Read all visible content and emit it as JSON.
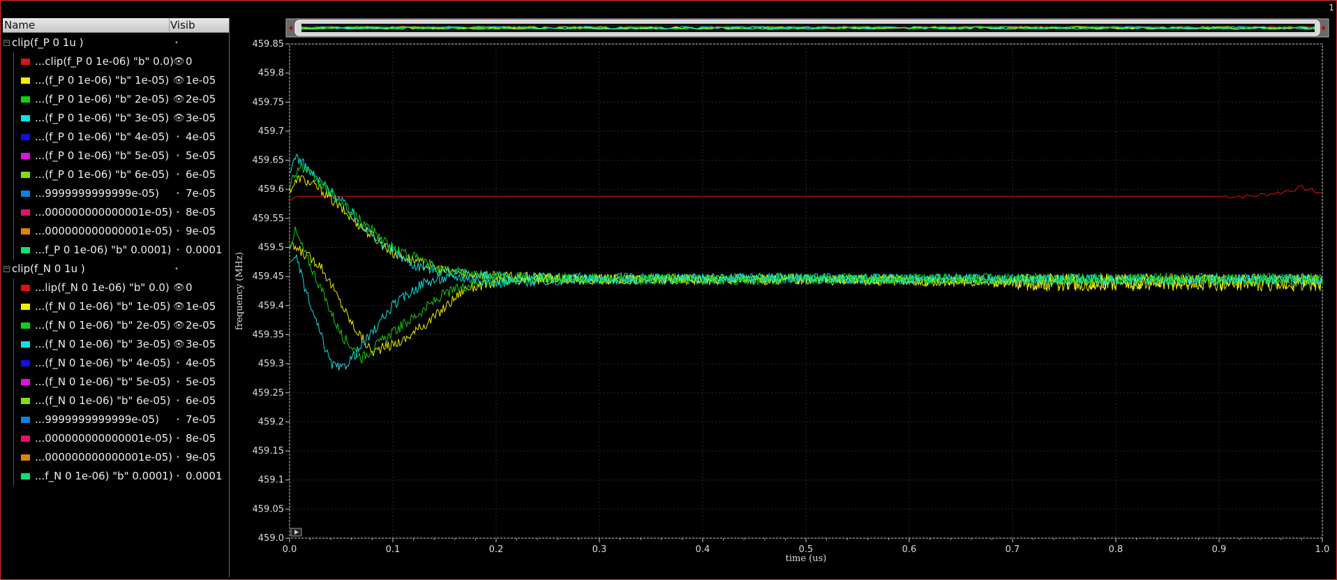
{
  "window": {
    "corner_number": "1",
    "frame_color": "#e03030"
  },
  "tree": {
    "header": {
      "name": "Name",
      "visible": "Visib"
    },
    "groups": [
      {
        "label": "clip(f_P 0 1u )",
        "items": [
          {
            "label": "...clip(f_P 0 1e-06) \"b\" 0.0)",
            "value": "0",
            "color": "#e01010",
            "visible": true
          },
          {
            "label": "...(f_P 0 1e-06) \"b\" 1e-05)",
            "value": "1e-05",
            "color": "#f0f000",
            "visible": true
          },
          {
            "label": "...(f_P 0 1e-06) \"b\" 2e-05)",
            "value": "2e-05",
            "color": "#10d010",
            "visible": true
          },
          {
            "label": "...(f_P 0 1e-06) \"b\" 3e-05)",
            "value": "3e-05",
            "color": "#10e0e0",
            "visible": true
          },
          {
            "label": "...(f_P 0 1e-06) \"b\" 4e-05)",
            "value": "4e-05",
            "color": "#1010e0",
            "visible": false
          },
          {
            "label": "...(f_P 0 1e-06) \"b\" 5e-05)",
            "value": "5e-05",
            "color": "#e010e0",
            "visible": false
          },
          {
            "label": "...(f_P 0 1e-06) \"b\" 6e-05)",
            "value": "6e-05",
            "color": "#80e010",
            "visible": false
          },
          {
            "label": "...9999999999999e-05)",
            "value": "7e-05",
            "color": "#1080e0",
            "visible": false
          },
          {
            "label": "...000000000000001e-05)",
            "value": "8e-05",
            "color": "#e01070",
            "visible": false
          },
          {
            "label": "...000000000000001e-05)",
            "value": "9e-05",
            "color": "#e08010",
            "visible": false
          },
          {
            "label": "...f_P 0 1e-06) \"b\" 0.0001)",
            "value": "0.0001",
            "color": "#10e070",
            "visible": false
          }
        ]
      },
      {
        "label": "clip(f_N 0 1u )",
        "items": [
          {
            "label": "...lip(f_N 0 1e-06) \"b\" 0.0)",
            "value": "0",
            "color": "#e01010",
            "visible": true
          },
          {
            "label": "...(f_N 0 1e-06) \"b\" 1e-05)",
            "value": "1e-05",
            "color": "#f0f000",
            "visible": true
          },
          {
            "label": "...(f_N 0 1e-06) \"b\" 2e-05)",
            "value": "2e-05",
            "color": "#10d010",
            "visible": true
          },
          {
            "label": "...(f_N 0 1e-06) \"b\" 3e-05)",
            "value": "3e-05",
            "color": "#10e0e0",
            "visible": true
          },
          {
            "label": "...(f_N 0 1e-06) \"b\" 4e-05)",
            "value": "4e-05",
            "color": "#1010e0",
            "visible": false
          },
          {
            "label": "...(f_N 0 1e-06) \"b\" 5e-05)",
            "value": "5e-05",
            "color": "#e010e0",
            "visible": false
          },
          {
            "label": "...(f_N 0 1e-06) \"b\" 6e-05)",
            "value": "6e-05",
            "color": "#80e010",
            "visible": false
          },
          {
            "label": "...9999999999999e-05)",
            "value": "7e-05",
            "color": "#1080e0",
            "visible": false
          },
          {
            "label": "...000000000000001e-05)",
            "value": "8e-05",
            "color": "#e01070",
            "visible": false
          },
          {
            "label": "...000000000000001e-05)",
            "value": "9e-05",
            "color": "#e08010",
            "visible": false
          },
          {
            "label": "...f_N 0 1e-06) \"b\" 0.0001)",
            "value": "0.0001",
            "color": "#10e070",
            "visible": false
          }
        ]
      }
    ]
  },
  "chart_data": {
    "type": "line",
    "xlabel": "time (us)",
    "ylabel": "frequency (MHz)",
    "xlim": [
      0,
      1
    ],
    "ylim": [
      459.0,
      459.85
    ],
    "xticks": [
      "0.0",
      "0.1",
      "0.2",
      "0.3",
      "0.4",
      "0.5",
      "0.6",
      "0.7",
      "0.8",
      "0.9",
      "1.0"
    ],
    "yticks": [
      "459.85",
      "459.8",
      "459.75",
      "459.7",
      "459.65",
      "459.6",
      "459.55",
      "459.5",
      "459.45",
      "459.4",
      "459.35",
      "459.3",
      "459.25",
      "459.2",
      "459.15",
      "459.1",
      "459.05",
      "459.0"
    ],
    "grid": true,
    "series": [
      {
        "color": "#e01010",
        "x": [
          0,
          0.005,
          0.01,
          0.9,
          0.93,
          0.96,
          0.98,
          1.0
        ],
        "y": [
          459.58,
          459.587,
          459.588,
          459.588,
          459.588,
          459.595,
          459.603,
          459.593
        ]
      },
      {
        "color": "#f0f000",
        "x": [
          0,
          0.01,
          0.03,
          0.06,
          0.1,
          0.15,
          0.2,
          0.3,
          0.5,
          0.7,
          1.0
        ],
        "y": [
          459.6,
          459.62,
          459.6,
          459.55,
          459.49,
          459.46,
          459.45,
          459.445,
          459.445,
          459.44,
          459.44
        ]
      },
      {
        "color": "#10e0e0",
        "x": [
          0,
          0.005,
          0.02,
          0.05,
          0.08,
          0.12,
          0.16,
          0.2,
          0.3,
          0.5,
          0.7,
          1.0
        ],
        "y": [
          459.62,
          459.66,
          459.63,
          459.58,
          459.52,
          459.47,
          459.455,
          459.45,
          459.447,
          459.447,
          459.445,
          459.445
        ]
      },
      {
        "color": "#10d010",
        "x": [
          0,
          0.01,
          0.03,
          0.06,
          0.1,
          0.15,
          0.2,
          0.3,
          0.5,
          0.7,
          1.0
        ],
        "y": [
          459.61,
          459.64,
          459.61,
          459.56,
          459.5,
          459.46,
          459.45,
          459.445,
          459.445,
          459.447,
          459.447
        ]
      },
      {
        "color": "#f0f000",
        "x": [
          0,
          0.005,
          0.03,
          0.06,
          0.08,
          0.11,
          0.14,
          0.17,
          0.2,
          0.25,
          0.3,
          0.5,
          0.7,
          1.0
        ],
        "y": [
          459.5,
          459.5,
          459.47,
          459.37,
          459.32,
          459.34,
          459.38,
          459.43,
          459.44,
          459.445,
          459.445,
          459.445,
          459.44,
          459.44
        ]
      },
      {
        "color": "#10d010",
        "x": [
          0,
          0.005,
          0.02,
          0.05,
          0.07,
          0.09,
          0.12,
          0.15,
          0.18,
          0.22,
          0.3,
          0.5,
          0.7,
          1.0
        ],
        "y": [
          459.5,
          459.53,
          459.47,
          459.35,
          459.31,
          459.34,
          459.38,
          459.42,
          459.44,
          459.445,
          459.447,
          459.447,
          459.445,
          459.445
        ]
      },
      {
        "color": "#10e0e0",
        "x": [
          0,
          0.005,
          0.02,
          0.04,
          0.05,
          0.07,
          0.1,
          0.13,
          0.16,
          0.2,
          0.3,
          0.5,
          0.7,
          1.0
        ],
        "y": [
          459.47,
          459.49,
          459.4,
          459.3,
          459.29,
          459.33,
          459.4,
          459.44,
          459.45,
          459.44,
          459.445,
          459.447,
          459.445,
          459.445
        ]
      }
    ]
  }
}
